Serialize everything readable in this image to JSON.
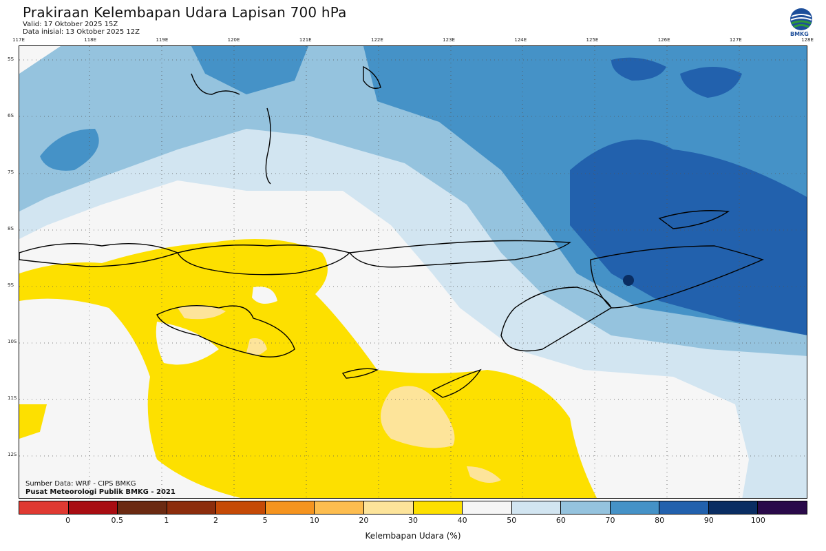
{
  "header": {
    "title": "Prakiraan Kelembapan Udara Lapisan 700 hPa",
    "valid": "Valid: 17 Oktober 2025 15Z",
    "initial": "Data inisial: 13 Oktober 2025 12Z"
  },
  "logo": {
    "label": "BMKG"
  },
  "axes": {
    "lon_labels": [
      "117E",
      "118E",
      "119E",
      "120E",
      "121E",
      "122E",
      "123E",
      "124E",
      "125E",
      "126E",
      "127E",
      "128E"
    ],
    "lat_labels": [
      "5S",
      "6S",
      "7S",
      "8S",
      "9S",
      "10S",
      "11S",
      "12S"
    ]
  },
  "credits": {
    "source": "Sumber Data: WRF - CIPS BMKG",
    "org": "Pusat Meteorologi Publik BMKG - 2021"
  },
  "colorbar": {
    "colors": [
      "#e03a32",
      "#a80d12",
      "#6b2a12",
      "#8c2d0c",
      "#c54a06",
      "#f5941f",
      "#fdbd4f",
      "#fde49a",
      "#fde000",
      "#f6f6f6",
      "#d2e5f1",
      "#95c3de",
      "#4592c7",
      "#2261ad",
      "#0a2d62",
      "#2a0a4a"
    ],
    "tick_labels": [
      "0",
      "0.5",
      "1",
      "2",
      "5",
      "10",
      "20",
      "30",
      "40",
      "50",
      "60",
      "70",
      "80",
      "90",
      "100"
    ],
    "title": "Kelembapan Udara (%)"
  },
  "legend_colors": {
    "c30_40": "#fde49a",
    "c40_50": "#fde000",
    "c50_60": "#f6f6f6",
    "c60_70": "#d2e5f1",
    "c70_80": "#95c3de",
    "c80_90": "#4592c7",
    "c90_100": "#2261ad",
    "c100": "#0a2d62"
  }
}
